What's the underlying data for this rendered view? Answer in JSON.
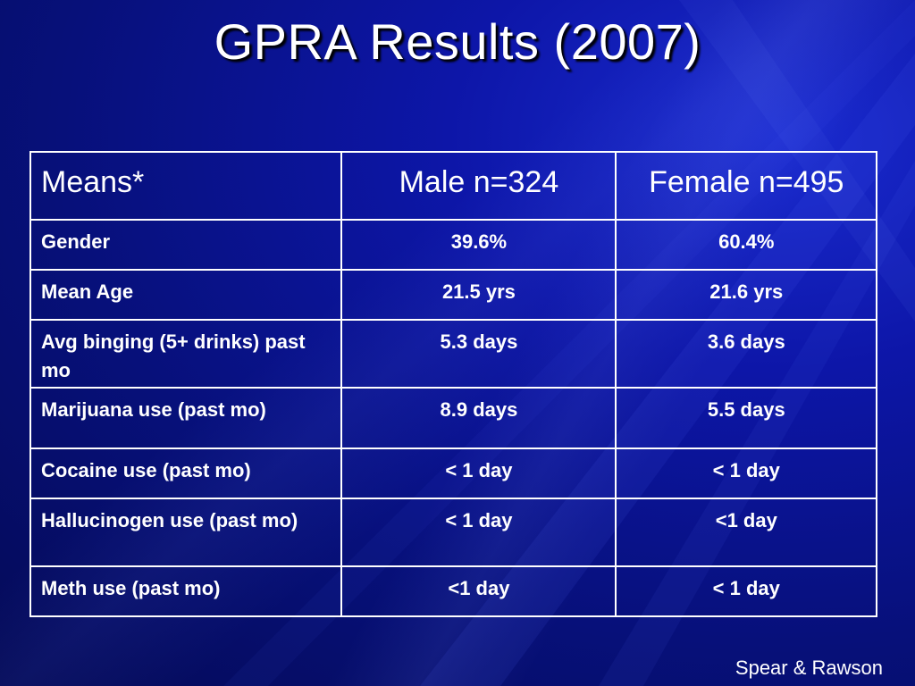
{
  "slide": {
    "title": "GPRA Results (2007)",
    "credit": "Spear & Rawson"
  },
  "table": {
    "headers": [
      "Means*",
      "Male n=324",
      "Female n=495"
    ],
    "rows": [
      [
        "Gender",
        "39.6%",
        "60.4%"
      ],
      [
        "Mean Age",
        "21.5 yrs",
        "21.6 yrs"
      ],
      [
        "Avg binging (5+ drinks) past mo",
        "5.3 days",
        "3.6 days"
      ],
      [
        "Marijuana use (past mo)",
        "8.9 days",
        "5.5 days"
      ],
      [
        "Cocaine use (past mo)",
        "< 1 day",
        "< 1 day"
      ],
      [
        "Hallucinogen use (past mo)",
        "< 1 day",
        "<1 day"
      ],
      [
        "Meth use (past mo)",
        "<1 day",
        "< 1 day"
      ]
    ]
  },
  "colors": {
    "background": "#0a1290",
    "text": "#ffffff",
    "border": "#ffffff"
  }
}
